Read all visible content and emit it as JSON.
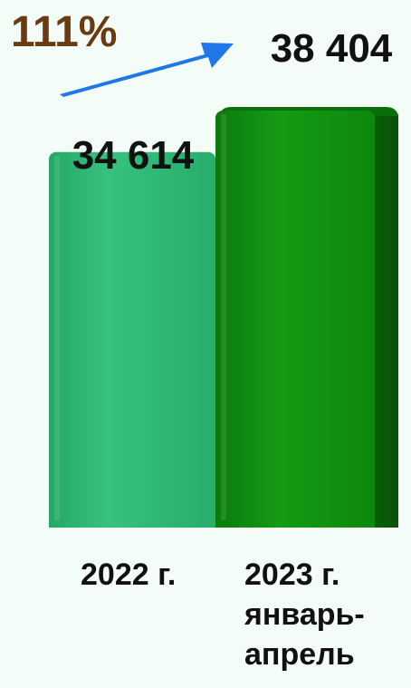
{
  "chart_data": {
    "type": "bar",
    "categories": [
      "2022 г.",
      "2023 г.\nянварь-\nапрель"
    ],
    "values": [
      34614,
      38404
    ],
    "value_labels": [
      "34 614",
      "38 404"
    ],
    "growth_label": "111%",
    "title": "",
    "xlabel": "",
    "ylabel": "",
    "ylim": [
      0,
      38404
    ],
    "grid": false,
    "colors": [
      "#2fb774",
      "#0f8a0f"
    ],
    "arrow_color": "#1e78e8"
  }
}
